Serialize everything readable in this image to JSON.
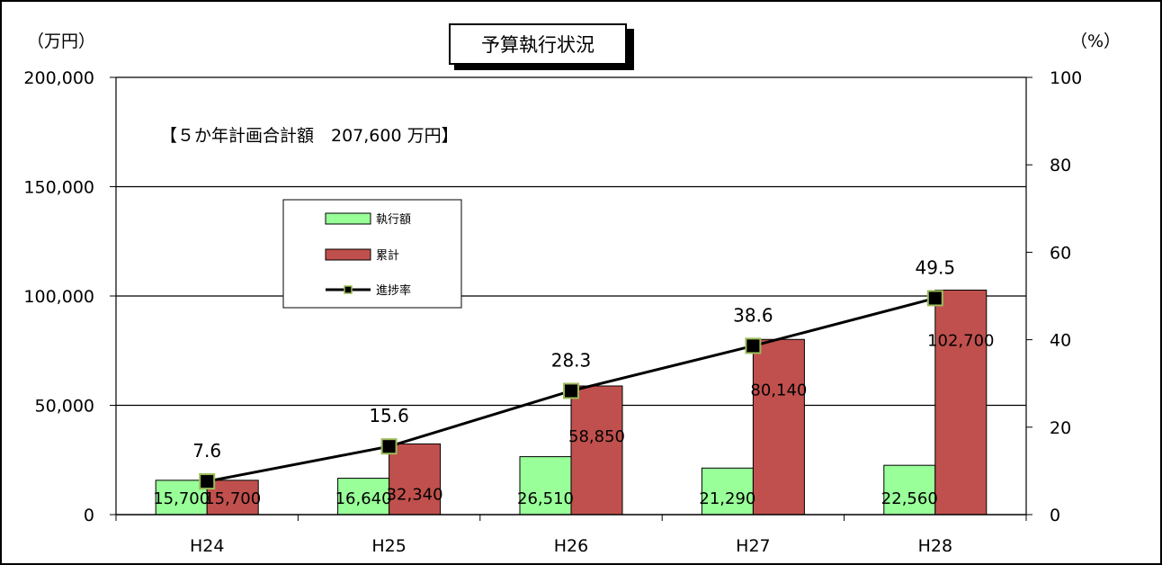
{
  "chart_data": {
    "type": "bar",
    "title": "予算執行状況",
    "y_left_unit": "（万円）",
    "y_right_unit": "（%）",
    "annotation": "【５か年計画合計額　207,600 万円】",
    "categories": [
      "H24",
      "H25",
      "H26",
      "H27",
      "H28"
    ],
    "ylim_left": [
      0,
      200000
    ],
    "yticks_left": [
      "0",
      "50,000",
      "100,000",
      "150,000",
      "200,000"
    ],
    "ylim_right": [
      0,
      100
    ],
    "yticks_right": [
      "0",
      "20",
      "40",
      "60",
      "80",
      "100"
    ],
    "grid": true,
    "legend_position": "upper-left",
    "series": [
      {
        "name": "執行額",
        "kind": "bar",
        "axis": "left",
        "color": "#99ff99",
        "values": [
          15700,
          16640,
          26510,
          21290,
          22560
        ],
        "labels": [
          "15,700",
          "16,640",
          "26,510",
          "21,290",
          "22,560"
        ]
      },
      {
        "name": "累計",
        "kind": "bar",
        "axis": "left",
        "color": "#c0504d",
        "values": [
          15700,
          32340,
          58850,
          80140,
          102700
        ],
        "labels": [
          "15,700",
          "32,340",
          "58,850",
          "80,140",
          "102,700"
        ]
      },
      {
        "name": "進捗率",
        "kind": "line",
        "axis": "right",
        "color": "#000000",
        "marker_color": "#9bbb59",
        "values": [
          7.6,
          15.6,
          28.3,
          38.6,
          49.5
        ],
        "labels": [
          "7.6",
          "15.6",
          "28.3",
          "38.6",
          "49.5"
        ]
      }
    ]
  }
}
